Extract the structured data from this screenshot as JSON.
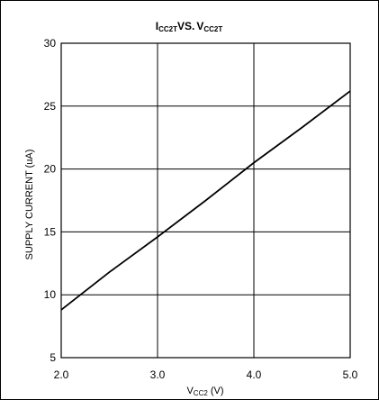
{
  "chart_data": {
    "type": "line",
    "title": {
      "main": "I",
      "main_sub": "CC2T",
      "vs": "VS.",
      "right": "V",
      "right_sub": "CC2T"
    },
    "xlabel": {
      "main": "V",
      "sub": "CC2",
      "unit": " (V)"
    },
    "ylabel": "SUPPLY CURRENT (uA)",
    "xlim": [
      2.0,
      5.0
    ],
    "ylim": [
      5,
      30
    ],
    "x_ticks": [
      2.0,
      3.0,
      4.0,
      5.0
    ],
    "x_tick_labels": [
      "2.0",
      "3.0",
      "4.0",
      "5.0"
    ],
    "y_ticks": [
      5,
      10,
      15,
      20,
      25,
      30
    ],
    "y_tick_labels": [
      "5",
      "10",
      "15",
      "20",
      "25",
      "30"
    ],
    "grid": true,
    "series": [
      {
        "x": [
          2.0,
          2.5,
          3.0,
          3.5,
          4.0,
          4.5,
          5.0
        ],
        "y": [
          8.8,
          11.8,
          14.6,
          17.5,
          20.5,
          23.3,
          26.2
        ]
      }
    ],
    "colors": {
      "line": "#000000",
      "grid": "#000000"
    }
  }
}
